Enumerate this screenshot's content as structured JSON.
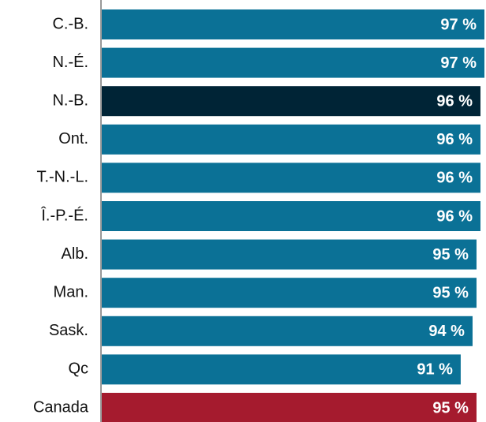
{
  "chart_data": {
    "type": "bar",
    "orientation": "horizontal",
    "categories": [
      "C.-B.",
      "N.-É.",
      "N.-B.",
      "Ont.",
      "T.-N.-L.",
      "Î.-P.-É.",
      "Alb.",
      "Man.",
      "Sask.",
      "Qc",
      "Canada"
    ],
    "values": [
      97,
      97,
      96,
      96,
      96,
      96,
      95,
      95,
      94,
      91,
      95
    ],
    "value_labels": [
      "97 %",
      "97 %",
      "96 %",
      "96 %",
      "96 %",
      "96 %",
      "95 %",
      "95 %",
      "94 %",
      "91 %",
      "95 %"
    ],
    "colors": [
      "#0b7196",
      "#0b7196",
      "#002436",
      "#0b7196",
      "#0b7196",
      "#0b7196",
      "#0b7196",
      "#0b7196",
      "#0b7196",
      "#0b7196",
      "#a51b2e"
    ]
  }
}
